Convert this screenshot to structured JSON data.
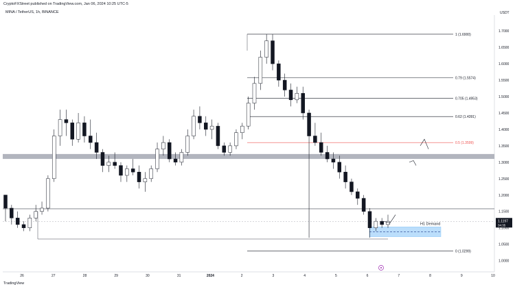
{
  "header": {
    "published": "CryptoFXStreet published on TradingView.com, Jan 06, 2024 10:25 UTC-5"
  },
  "symbol": {
    "label": "MINA / TetherUS, 1h, BINANCE"
  },
  "currency": "USDT",
  "brand": {
    "logo_text": "TradingView"
  },
  "chart_data": {
    "type": "candlestick",
    "ylim": [
      0.97,
      1.74
    ],
    "x_ticks": [
      "26",
      "27",
      "28",
      "29",
      "30",
      "31",
      "2024",
      "2",
      "3",
      "4",
      "5",
      "6",
      "7",
      "8",
      "9",
      "10"
    ],
    "y_ticks": [
      "1.0000",
      "1.0500",
      "1.1000",
      "1.1500",
      "1.2000",
      "1.2500",
      "1.3000",
      "1.3500",
      "1.4000",
      "1.4500",
      "1.5000",
      "1.5500",
      "1.6000",
      "1.6500",
      "1.7000"
    ],
    "price_label": {
      "value": "1.1197",
      "time": "34:35"
    },
    "fib_levels": [
      {
        "label": "1 (1.6900)",
        "value": 1.69
      },
      {
        "label": "0.79 (1.5574)",
        "value": 1.5574
      },
      {
        "label": "0.705 (1.4953)",
        "value": 1.4953
      },
      {
        "label": "0.62 (1.4391)",
        "value": 1.4391
      },
      {
        "label": "0.5 (1.3599)",
        "value": 1.3599,
        "color": "#ef5350"
      },
      {
        "label": "0 (1.0299)",
        "value": 1.0299
      }
    ],
    "zones": [
      {
        "label": "",
        "from": 1.31,
        "to": 1.325,
        "color": "#b2b5be"
      },
      {
        "label": "H1 Demand",
        "from": 1.073,
        "to": 1.103,
        "color": "#bbdefb"
      }
    ],
    "horizontal_lines": [
      1.158,
      1.066
    ],
    "candles": [
      [
        1.2,
        1.2,
        1.12,
        1.16
      ],
      [
        1.16,
        1.17,
        1.11,
        1.13
      ],
      [
        1.13,
        1.15,
        1.1,
        1.11
      ],
      [
        1.11,
        1.12,
        1.09,
        1.1
      ],
      [
        1.1,
        1.14,
        1.09,
        1.13
      ],
      [
        1.13,
        1.17,
        1.12,
        1.15
      ],
      [
        1.15,
        1.18,
        1.14,
        1.16
      ],
      [
        1.16,
        1.26,
        1.15,
        1.25
      ],
      [
        1.25,
        1.4,
        1.24,
        1.38
      ],
      [
        1.38,
        1.46,
        1.35,
        1.43
      ],
      [
        1.43,
        1.46,
        1.38,
        1.42
      ],
      [
        1.42,
        1.43,
        1.35,
        1.37
      ],
      [
        1.37,
        1.45,
        1.36,
        1.42
      ],
      [
        1.42,
        1.44,
        1.36,
        1.38
      ],
      [
        1.38,
        1.43,
        1.34,
        1.36
      ],
      [
        1.36,
        1.39,
        1.31,
        1.33
      ],
      [
        1.33,
        1.34,
        1.27,
        1.29
      ],
      [
        1.29,
        1.32,
        1.27,
        1.3
      ],
      [
        1.3,
        1.33,
        1.28,
        1.29
      ],
      [
        1.29,
        1.3,
        1.24,
        1.26
      ],
      [
        1.26,
        1.29,
        1.24,
        1.28
      ],
      [
        1.28,
        1.31,
        1.26,
        1.27
      ],
      [
        1.27,
        1.29,
        1.22,
        1.24
      ],
      [
        1.24,
        1.27,
        1.21,
        1.25
      ],
      [
        1.25,
        1.29,
        1.24,
        1.28
      ],
      [
        1.28,
        1.36,
        1.27,
        1.34
      ],
      [
        1.34,
        1.38,
        1.32,
        1.36
      ],
      [
        1.36,
        1.37,
        1.3,
        1.31
      ],
      [
        1.31,
        1.33,
        1.29,
        1.3
      ],
      [
        1.3,
        1.34,
        1.29,
        1.33
      ],
      [
        1.33,
        1.4,
        1.32,
        1.38
      ],
      [
        1.38,
        1.46,
        1.37,
        1.44
      ],
      [
        1.44,
        1.47,
        1.4,
        1.42
      ],
      [
        1.42,
        1.44,
        1.38,
        1.4
      ],
      [
        1.4,
        1.43,
        1.37,
        1.41
      ],
      [
        1.41,
        1.42,
        1.34,
        1.35
      ],
      [
        1.35,
        1.36,
        1.32,
        1.33
      ],
      [
        1.33,
        1.36,
        1.32,
        1.35
      ],
      [
        1.35,
        1.4,
        1.34,
        1.39
      ],
      [
        1.39,
        1.42,
        1.37,
        1.41
      ],
      [
        1.41,
        1.5,
        1.4,
        1.48
      ],
      [
        1.48,
        1.56,
        1.46,
        1.54
      ],
      [
        1.54,
        1.64,
        1.52,
        1.62
      ],
      [
        1.62,
        1.69,
        1.6,
        1.67
      ],
      [
        1.67,
        1.69,
        1.58,
        1.6
      ],
      [
        1.6,
        1.61,
        1.53,
        1.55
      ],
      [
        1.55,
        1.57,
        1.5,
        1.52
      ],
      [
        1.52,
        1.54,
        1.47,
        1.49
      ],
      [
        1.49,
        1.53,
        1.48,
        1.51
      ],
      [
        1.51,
        1.53,
        1.43,
        1.45
      ],
      [
        1.45,
        1.46,
        1.07,
        1.38
      ],
      [
        1.38,
        1.42,
        1.35,
        1.36
      ],
      [
        1.36,
        1.39,
        1.32,
        1.33
      ],
      [
        1.33,
        1.35,
        1.3,
        1.31
      ],
      [
        1.31,
        1.33,
        1.28,
        1.3
      ],
      [
        1.3,
        1.32,
        1.25,
        1.27
      ],
      [
        1.27,
        1.29,
        1.22,
        1.24
      ],
      [
        1.24,
        1.25,
        1.2,
        1.21
      ],
      [
        1.21,
        1.22,
        1.17,
        1.19
      ],
      [
        1.19,
        1.2,
        1.14,
        1.15
      ],
      [
        1.15,
        1.16,
        1.07,
        1.1
      ],
      [
        1.1,
        1.13,
        1.09,
        1.12
      ],
      [
        1.12,
        1.13,
        1.1,
        1.11
      ],
      [
        1.11,
        1.14,
        1.1,
        1.12
      ]
    ],
    "projections": [
      {
        "points": [
          [
            1.12,
            1.12
          ],
          [
            1.13,
            1.115
          ],
          [
            1.14,
            1.14
          ]
        ]
      },
      {
        "points": [
          [
            1.35,
            1.35
          ],
          [
            1.38,
            1.37
          ],
          [
            1.35,
            1.34
          ]
        ]
      },
      {
        "points": [
          [
            1.3,
            1.3
          ],
          [
            1.31,
            1.305
          ],
          [
            1.295,
            1.29
          ]
        ]
      }
    ]
  }
}
